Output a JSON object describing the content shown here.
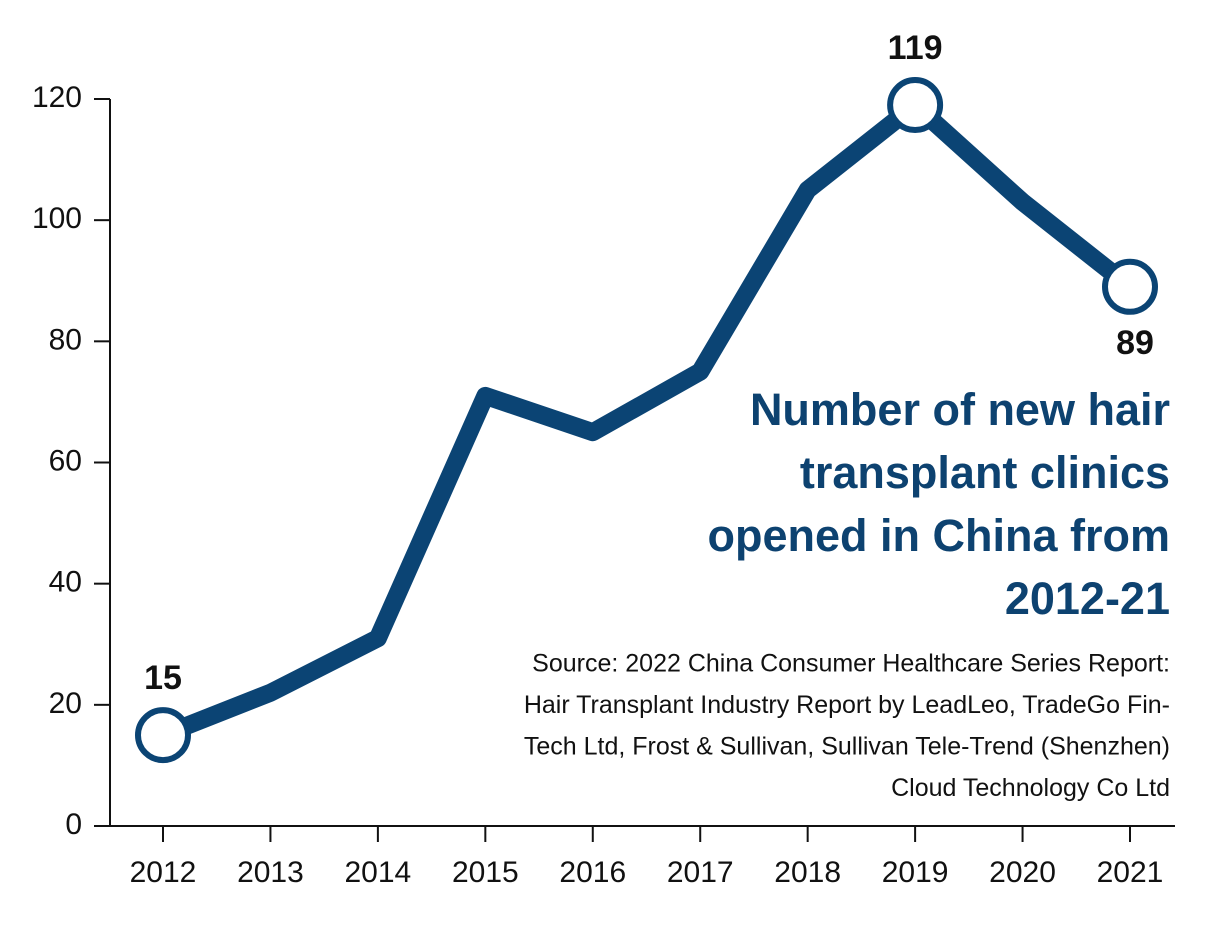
{
  "chart_data": {
    "type": "line",
    "title": [
      "Number of new hair",
      "transplant clinics",
      "opened in China from",
      "2012-21"
    ],
    "source": [
      "Source: 2022 China Consumer Healthcare Series Report:",
      "Hair Transplant Industry Report by LeadLeo, TradeGo Fin-",
      "Tech Ltd, Frost & Sullivan, Sullivan Tele-Trend (Shenzhen)",
      "Cloud Technology Co Ltd"
    ],
    "categories": [
      "2012",
      "2013",
      "2014",
      "2015",
      "2016",
      "2017",
      "2018",
      "2019",
      "2020",
      "2021"
    ],
    "values": [
      15,
      22,
      31,
      71,
      65,
      75,
      105,
      119,
      103,
      89
    ],
    "labeled_points": [
      0,
      7,
      9
    ],
    "color": "#0b4474",
    "ylim": [
      0,
      120
    ],
    "yticks": [
      0,
      20,
      40,
      60,
      80,
      100,
      120
    ]
  }
}
